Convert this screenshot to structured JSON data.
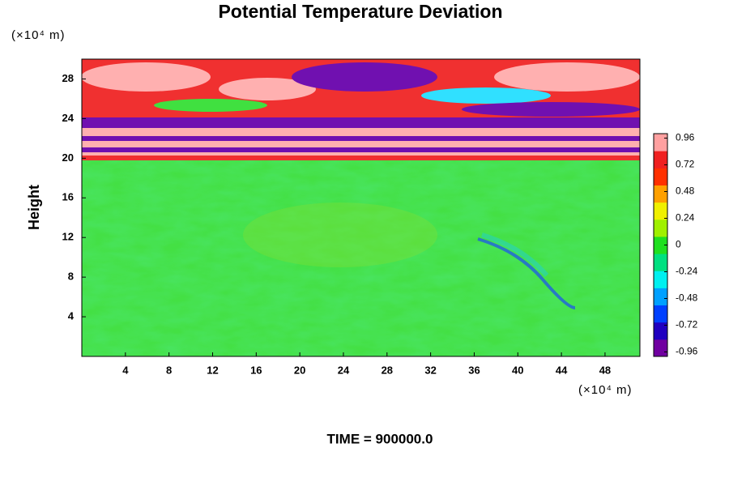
{
  "chart_data": {
    "type": "heatmap",
    "title": "Potential Temperature Deviation",
    "y_label": "Height",
    "y_unit": "(×10⁴ m)",
    "x_unit": "(×10⁴ m)",
    "annotation": "TIME = 900000.0",
    "xlim": [
      0,
      51.2
    ],
    "xticks": [
      4,
      8,
      12,
      16,
      20,
      24,
      28,
      32,
      36,
      40,
      44,
      48
    ],
    "ylim": [
      0,
      30
    ],
    "yticks": [
      4,
      8,
      12,
      16,
      20,
      24,
      28
    ],
    "clim": [
      -1,
      1
    ],
    "cticks": [
      0.96,
      0.72,
      0.48,
      0.24,
      0,
      -0.24,
      -0.48,
      -0.72,
      -0.96
    ],
    "colormap": [
      "#7000a0",
      "#2000c0",
      "#0040ff",
      "#00a0ff",
      "#00f0f0",
      "#00e080",
      "#20e020",
      "#a0f000",
      "#f0f000",
      "#ffa000",
      "#ff3000",
      "#f02020",
      "#ffa0a0"
    ]
  }
}
